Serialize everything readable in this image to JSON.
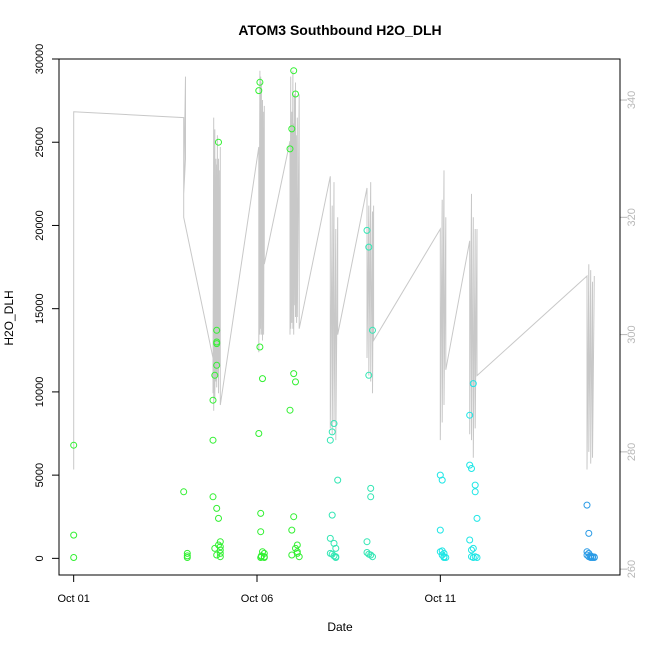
{
  "chart_data": {
    "type": "scatter",
    "title": "ATOM3 Southbound H2O_DLH",
    "xlabel": "Date",
    "ylabel": "H2O_DLH",
    "x_ticks": [
      "Oct 01",
      "Oct 06",
      "Oct 11"
    ],
    "x_tick_days": [
      1,
      6,
      11
    ],
    "xlim": [
      0.6,
      15.9
    ],
    "ylim": [
      -1000,
      30000
    ],
    "y_ticks": [
      0,
      5000,
      10000,
      15000,
      20000,
      25000,
      30000
    ],
    "y2lim": [
      259,
      347
    ],
    "y2_ticks": [
      260,
      280,
      300,
      320,
      340
    ],
    "grid": false,
    "legend": "none",
    "colors": {
      "line": "#c8c8c8",
      "green": "#32f032",
      "teal": "#32e6b4",
      "cyan": "#1ee6e6",
      "blue": "#2a9be6"
    },
    "series": [
      {
        "color_key": "green",
        "x": [
          1.0,
          1.0,
          1.0,
          4.0,
          4.1,
          4.1,
          4.1,
          4.8,
          4.8,
          4.8,
          4.85,
          4.85,
          4.9,
          4.9,
          4.9,
          4.9,
          4.9,
          4.9,
          4.95,
          4.95,
          4.95,
          5.0,
          5.0,
          5.0,
          5.0,
          5.0,
          6.05,
          6.05,
          6.08,
          6.08,
          6.1,
          6.1,
          6.1,
          6.12,
          6.12,
          6.15,
          6.15,
          6.2,
          6.2,
          6.2,
          6.9,
          6.9,
          6.95,
          6.95,
          6.95,
          7.0,
          7.0,
          7.0,
          7.05,
          7.05,
          7.05,
          7.1,
          7.1,
          7.1,
          7.15
        ],
        "y": [
          6800,
          1400,
          50,
          4000,
          300,
          50,
          150,
          9500,
          7100,
          3700,
          11000,
          600,
          11600,
          13000,
          13700,
          12900,
          3000,
          200,
          25000,
          2400,
          800,
          1000,
          700,
          500,
          300,
          100,
          28100,
          7500,
          28600,
          12700,
          2700,
          1600,
          50,
          150,
          100,
          10800,
          400,
          100,
          50,
          300,
          24600,
          8900,
          25800,
          1700,
          200,
          29300,
          11100,
          2500,
          27900,
          10600,
          600,
          800,
          400,
          300,
          100
        ]
      },
      {
        "color_key": "teal",
        "x": [
          8.0,
          8.0,
          8.0,
          8.05,
          8.05,
          8.05,
          8.1,
          8.1,
          8.1,
          8.15,
          8.15,
          8.15,
          8.2,
          9.0,
          9.0,
          9.0,
          9.05,
          9.05,
          9.05,
          9.1,
          9.1,
          9.1,
          9.15,
          9.15
        ],
        "y": [
          7100,
          1200,
          300,
          7600,
          2600,
          250,
          8100,
          900,
          150,
          600,
          100,
          50,
          4700,
          19700,
          1000,
          350,
          18700,
          11000,
          250,
          4200,
          3700,
          200,
          13700,
          100
        ]
      },
      {
        "color_key": "cyan",
        "x": [
          11.0,
          11.0,
          11.0,
          11.05,
          11.05,
          11.05,
          11.1,
          11.1,
          11.1,
          11.15,
          11.8,
          11.8,
          11.8,
          11.85,
          11.85,
          11.85,
          11.9,
          11.9,
          11.9,
          11.95,
          11.95,
          11.95,
          12.0,
          12.0
        ],
        "y": [
          5000,
          1700,
          400,
          4700,
          450,
          200,
          300,
          100,
          50,
          50,
          5600,
          8600,
          1100,
          5400,
          500,
          100,
          10500,
          600,
          50,
          4400,
          4000,
          100,
          2400,
          50
        ]
      },
      {
        "color_key": "blue",
        "x": [
          15.0,
          15.0,
          15.0,
          15.05,
          15.05,
          15.05,
          15.1,
          15.1,
          15.1,
          15.15,
          15.15,
          15.2,
          15.2
        ],
        "y": [
          3200,
          400,
          200,
          1500,
          100,
          300,
          50,
          150,
          100,
          50,
          100,
          50,
          80
        ]
      }
    ],
    "secondary_series": {
      "color_key": "line",
      "x": [
        1.0,
        1.0,
        1.0,
        4.0,
        4.0,
        4.05,
        4.05,
        4.0,
        4.0,
        4.8,
        4.8,
        4.82,
        4.82,
        4.85,
        4.85,
        4.88,
        4.88,
        4.9,
        4.9,
        4.92,
        4.92,
        4.95,
        4.95,
        4.98,
        4.98,
        5.0,
        5.0,
        6.05,
        6.05,
        6.08,
        6.08,
        6.1,
        6.1,
        6.12,
        6.12,
        6.15,
        6.15,
        6.18,
        6.18,
        6.2,
        6.2,
        6.9,
        6.9,
        6.92,
        6.92,
        6.95,
        6.95,
        6.98,
        6.98,
        7.0,
        7.0,
        7.02,
        7.02,
        7.05,
        7.05,
        7.08,
        7.08,
        7.1,
        7.1,
        7.15,
        7.15,
        8.0,
        8.0,
        8.05,
        8.05,
        8.1,
        8.1,
        8.15,
        8.15,
        8.2,
        8.2,
        9.0,
        9.0,
        9.05,
        9.05,
        9.1,
        9.1,
        9.15,
        9.15,
        9.18,
        9.18,
        11.0,
        11.0,
        11.05,
        11.05,
        11.1,
        11.1,
        11.15,
        11.15,
        11.8,
        11.8,
        11.85,
        11.85,
        11.9,
        11.9,
        11.95,
        11.95,
        12.0,
        12.0,
        15.0,
        15.0,
        15.05,
        15.05,
        15.1,
        15.1,
        15.15,
        15.15,
        15.2
      ],
      "y": [
        277,
        281,
        338,
        337,
        324,
        344,
        330,
        324,
        320,
        296,
        290,
        337,
        287,
        335,
        289,
        330,
        292,
        329,
        291,
        334,
        293,
        330,
        290,
        328,
        295,
        332,
        288,
        332,
        297,
        345,
        300,
        344,
        301,
        343,
        300,
        340,
        299,
        338,
        300,
        339,
        312,
        333,
        300,
        344,
        301,
        338,
        302,
        345,
        301,
        336,
        300,
        341,
        305,
        343,
        303,
        334,
        302,
        337,
        303,
        341,
        301,
        327,
        284,
        322,
        283,
        326,
        285,
        318,
        282,
        320,
        300,
        325,
        296,
        322,
        293,
        326,
        292,
        321,
        290,
        322,
        299,
        318,
        282,
        323,
        285,
        328,
        288,
        320,
        294,
        316,
        283,
        324,
        282,
        320,
        279,
        318,
        284,
        318,
        293,
        310,
        277,
        312,
        280,
        311,
        278,
        309,
        279,
        310
      ]
    }
  }
}
